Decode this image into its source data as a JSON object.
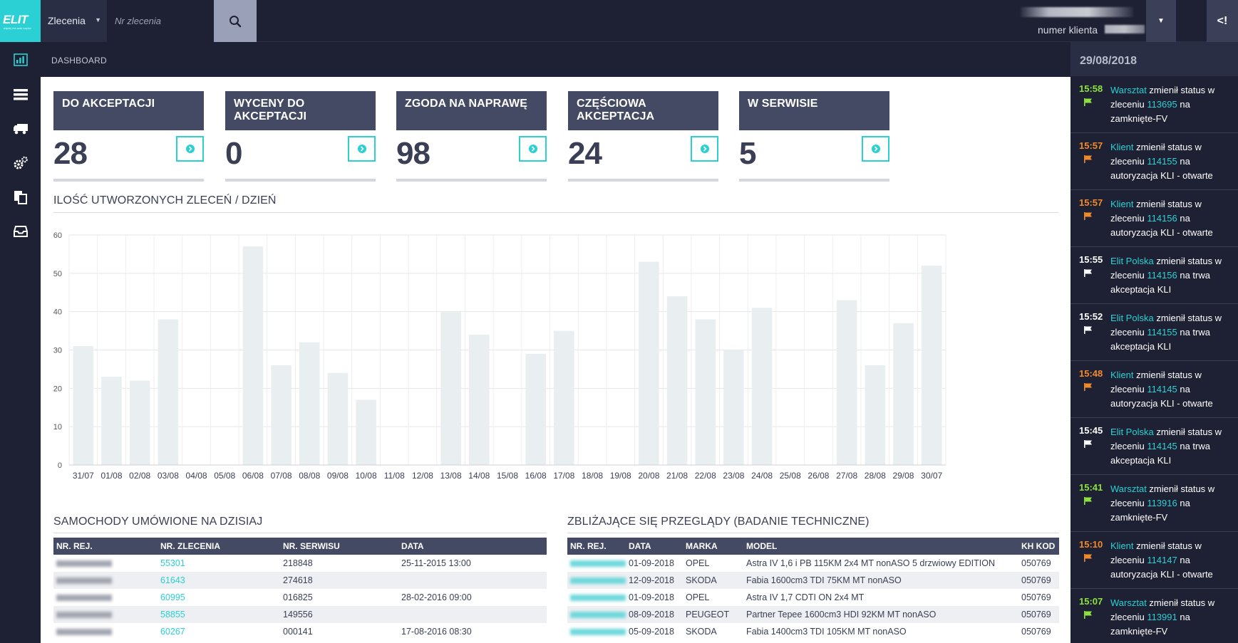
{
  "header": {
    "logo_text": "ELIT",
    "logo_tagline": "więcej niż auto części",
    "select_value": "Zlecenia",
    "search_placeholder": "Nr zlecenia",
    "client_label": "numer klienta"
  },
  "breadcrumb": "DASHBOARD",
  "sidebar": {
    "items": [
      "dashboard-icon",
      "list-icon",
      "truck-icon",
      "gears-icon",
      "documents-icon",
      "inbox-icon"
    ]
  },
  "cards": [
    {
      "title": "DO AKCEPTACJI",
      "value": "28"
    },
    {
      "title": "WYCENY DO AKCEPTACJI",
      "value": "0"
    },
    {
      "title": "ZGODA NA NAPRAWĘ",
      "value": "98"
    },
    {
      "title": "CZĘŚCIOWA AKCEPTACJA",
      "value": "24"
    },
    {
      "title": "W SERWISIE",
      "value": "5"
    }
  ],
  "chart_title": "ILOŚĆ UTWORZONYCH ZLECEŃ / DZIEŃ",
  "chart_data": {
    "type": "bar",
    "categories": [
      "31/07",
      "01/08",
      "02/08",
      "03/08",
      "04/08",
      "05/08",
      "06/08",
      "07/08",
      "08/08",
      "09/08",
      "10/08",
      "11/08",
      "12/08",
      "13/08",
      "14/08",
      "15/08",
      "16/08",
      "17/08",
      "18/08",
      "19/08",
      "20/08",
      "21/08",
      "22/08",
      "23/08",
      "24/08",
      "25/08",
      "26/08",
      "27/08",
      "28/08",
      "29/08",
      "30/07"
    ],
    "values": [
      31,
      23,
      22,
      38,
      0,
      0,
      57,
      26,
      32,
      24,
      17,
      0,
      0,
      40,
      34,
      0,
      29,
      35,
      0,
      0,
      53,
      44,
      38,
      30,
      41,
      0,
      0,
      43,
      26,
      37,
      52
    ],
    "ylim": [
      0,
      60
    ],
    "yticks": [
      0,
      10,
      20,
      30,
      40,
      50,
      60
    ],
    "grid": true,
    "bar_color": "#e9eef1"
  },
  "appointments": {
    "title": "SAMOCHODY UMÓWIONE NA DZISIAJ",
    "columns": [
      "NR. REJ.",
      "NR. ZLECENIA",
      "NR. SERWISU",
      "DATA"
    ],
    "rows": [
      {
        "order": "55301",
        "service": "218848",
        "date": "25-11-2015 13:00"
      },
      {
        "order": "61643",
        "service": "274618",
        "date": ""
      },
      {
        "order": "60995",
        "service": "016825",
        "date": "28-02-2016 09:00"
      },
      {
        "order": "58855",
        "service": "149556",
        "date": ""
      },
      {
        "order": "60267",
        "service": "000141",
        "date": "17-08-2016 08:30"
      }
    ]
  },
  "inspections": {
    "title": "ZBLIŻAJĄCE SIĘ PRZEGLĄDY (BADANIE TECHNICZNE)",
    "columns": [
      "NR. REJ.",
      "DATA",
      "MARKA",
      "MODEL",
      "KH KOD"
    ],
    "rows": [
      {
        "date": "01-09-2018",
        "brand": "OPEL",
        "model": "Astra IV 1,6 i PB 115KM 2x4 MT nonASO 5 drzwiowy EDITION",
        "kh": "050769"
      },
      {
        "date": "12-09-2018",
        "brand": "SKODA",
        "model": "Fabia 1600cm3 TDI 75KM MT nonASO",
        "kh": "050769"
      },
      {
        "date": "01-09-2018",
        "brand": "OPEL",
        "model": "Astra IV 1,7 CDTI ON 2x4 MT",
        "kh": "050769"
      },
      {
        "date": "08-09-2018",
        "brand": "PEUGEOT",
        "model": "Partner Tepee 1600cm3 HDI 92KM MT nonASO",
        "kh": "050769"
      },
      {
        "date": "05-09-2018",
        "brand": "SKODA",
        "model": "Fabia 1400cm3 TDI 105KM MT nonASO",
        "kh": "050769"
      }
    ]
  },
  "activity": {
    "date": "29/08/2018",
    "colors": {
      "green": "#8ee23c",
      "orange": "#f28a2a",
      "white": "#ffffff"
    },
    "events": [
      {
        "time": "15:58",
        "color": "green",
        "actor": "Warsztat",
        "verb": " zmienił status w zleceniu ",
        "order": "113695",
        "rest": " na zamknięte-FV"
      },
      {
        "time": "15:57",
        "color": "orange",
        "actor": "Klient",
        "verb": " zmienił status w zleceniu ",
        "order": "114155",
        "rest": " na autoryzacja KLI - otwarte"
      },
      {
        "time": "15:57",
        "color": "orange",
        "actor": "Klient",
        "verb": " zmienił status w zleceniu ",
        "order": "114156",
        "rest": " na autoryzacja KLI - otwarte"
      },
      {
        "time": "15:55",
        "color": "white",
        "actor": "Elit Polska",
        "verb": " zmienił status w zleceniu ",
        "order": "114156",
        "rest": " na trwa akceptacja KLI"
      },
      {
        "time": "15:52",
        "color": "white",
        "actor": "Elit Polska",
        "verb": " zmienił status w zleceniu ",
        "order": "114155",
        "rest": " na trwa akceptacja KLI"
      },
      {
        "time": "15:48",
        "color": "orange",
        "actor": "Klient",
        "verb": " zmienił status w zleceniu ",
        "order": "114145",
        "rest": " na autoryzacja KLI - otwarte"
      },
      {
        "time": "15:45",
        "color": "white",
        "actor": "Elit Polska",
        "verb": " zmienił status w zleceniu ",
        "order": "114145",
        "rest": " na trwa akceptacja KLI"
      },
      {
        "time": "15:41",
        "color": "green",
        "actor": "Warsztat",
        "verb": " zmienił status w zleceniu ",
        "order": "113916",
        "rest": " na zamknięte-FV"
      },
      {
        "time": "15:10",
        "color": "orange",
        "actor": "Klient",
        "verb": " zmienił status w zleceniu ",
        "order": "114147",
        "rest": " na autoryzacja KLI - otwarte"
      },
      {
        "time": "15:07",
        "color": "green",
        "actor": "Warsztat",
        "verb": " zmienił status w zleceniu ",
        "order": "113991",
        "rest": " na zamknięte-FV"
      }
    ]
  }
}
